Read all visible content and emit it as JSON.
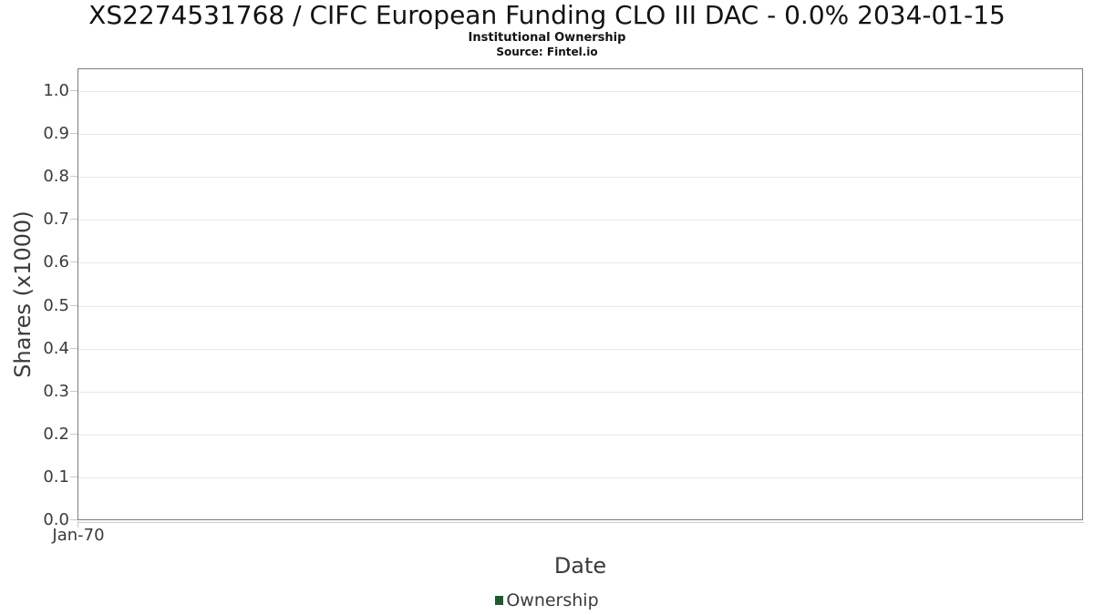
{
  "chart_data": {
    "type": "line",
    "title": "XS2274531768 / CIFC European Funding CLO III DAC - 0.0% 2034-01-15",
    "subtitle": "Institutional Ownership",
    "source": "Source: Fintel.io",
    "xlabel": "Date",
    "ylabel": "Shares (x1000)",
    "ylim": [
      0.0,
      1.0
    ],
    "y_ticks": [
      "0.0",
      "0.1",
      "0.2",
      "0.3",
      "0.4",
      "0.5",
      "0.6",
      "0.7",
      "0.8",
      "0.9",
      "1.0"
    ],
    "x_ticks": [
      "Jan-70"
    ],
    "grid": true,
    "legend_position": "bottom",
    "series": [
      {
        "name": "Ownership",
        "color": "#1e5b31",
        "x": [],
        "values": []
      }
    ],
    "colors": {
      "frame": "#7d7d7d",
      "gridline": "#e7e7e7",
      "tick": "#c9c9c9",
      "axis_text": "#3b3b3b",
      "title_text": "#121212",
      "background": "#ffffff"
    }
  }
}
